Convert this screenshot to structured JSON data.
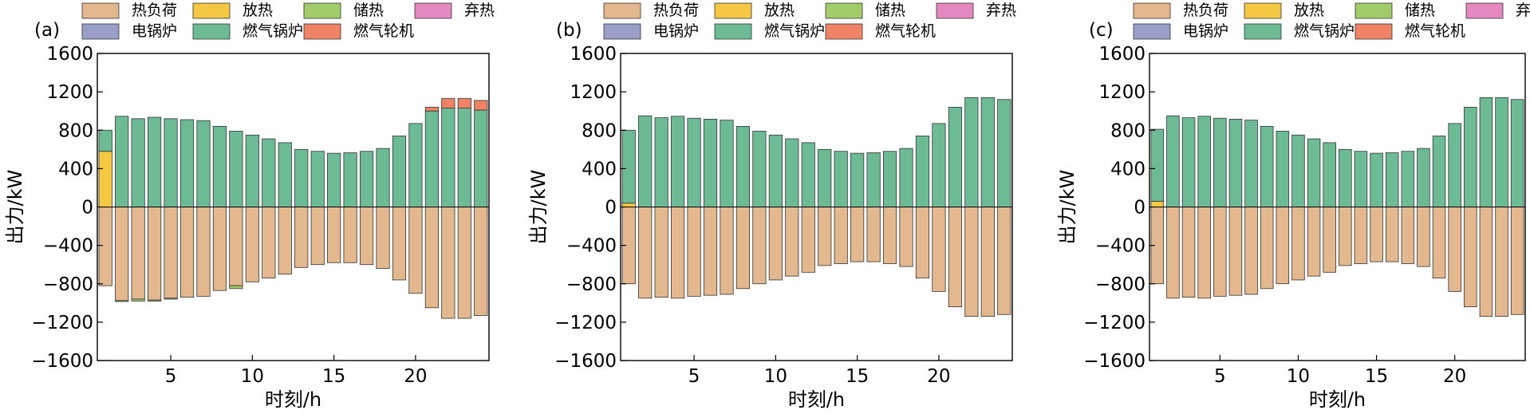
{
  "legend": {
    "row1": [
      {
        "name": "热负荷",
        "color": "#e3b88f"
      },
      {
        "name": "放热",
        "color": "#f5c843"
      },
      {
        "name": "储热",
        "color": "#a2cc6a"
      },
      {
        "name": "弃热",
        "color": "#e389c0"
      }
    ],
    "row2": [
      {
        "name": "电锅炉",
        "color": "#9a9fc9"
      },
      {
        "name": "燃气锅炉",
        "color": "#6dbb95"
      },
      {
        "name": "燃气轮机",
        "color": "#f08266"
      }
    ]
  },
  "chart_data": [
    {
      "type": "bar",
      "panel_label": "(a)",
      "xlabel": "时刻/h",
      "ylabel": "出力/kW",
      "ylim": [
        -1600,
        1600
      ],
      "yticks": [
        -1600,
        -1200,
        -800,
        -400,
        0,
        400,
        800,
        1200,
        1600
      ],
      "xticks": [
        5,
        10,
        15,
        20
      ],
      "x": [
        1,
        2,
        3,
        4,
        5,
        6,
        7,
        8,
        9,
        10,
        11,
        12,
        13,
        14,
        15,
        16,
        17,
        18,
        19,
        20,
        21,
        22,
        23,
        24
      ],
      "series": [
        {
          "name": "热负荷",
          "values": [
            -820,
            -975,
            -960,
            -970,
            -950,
            -940,
            -930,
            -870,
            -820,
            -780,
            -740,
            -700,
            -630,
            -600,
            -580,
            -580,
            -600,
            -640,
            -760,
            -900,
            -1050,
            -1160,
            -1160,
            -1130
          ]
        },
        {
          "name": "放热",
          "values": [
            580,
            0,
            0,
            0,
            0,
            0,
            0,
            0,
            0,
            0,
            0,
            0,
            0,
            0,
            0,
            0,
            0,
            0,
            0,
            0,
            0,
            0,
            0,
            0
          ]
        },
        {
          "name": "储热",
          "values": [
            0,
            -10,
            -20,
            -10,
            -10,
            0,
            0,
            0,
            -30,
            0,
            0,
            0,
            0,
            0,
            0,
            0,
            0,
            0,
            0,
            0,
            0,
            0,
            0,
            0
          ]
        },
        {
          "name": "燃气锅炉",
          "values": [
            220,
            945,
            920,
            935,
            920,
            910,
            900,
            840,
            790,
            750,
            710,
            670,
            600,
            580,
            560,
            565,
            580,
            610,
            740,
            870,
            1000,
            1030,
            1030,
            1010
          ]
        },
        {
          "name": "燃气轮机",
          "values": [
            0,
            0,
            0,
            0,
            0,
            0,
            0,
            0,
            0,
            0,
            0,
            0,
            0,
            0,
            0,
            0,
            0,
            0,
            0,
            0,
            40,
            100,
            100,
            100
          ]
        }
      ]
    },
    {
      "type": "bar",
      "panel_label": "(b)",
      "xlabel": "时刻/h",
      "ylabel": "出力/kW",
      "ylim": [
        -1600,
        1600
      ],
      "yticks": [
        -1600,
        -1200,
        -800,
        -400,
        0,
        400,
        800,
        1200,
        1600
      ],
      "xticks": [
        5,
        10,
        15,
        20
      ],
      "x": [
        1,
        2,
        3,
        4,
        5,
        6,
        7,
        8,
        9,
        10,
        11,
        12,
        13,
        14,
        15,
        16,
        17,
        18,
        19,
        20,
        21,
        22,
        23,
        24
      ],
      "series": [
        {
          "name": "热负荷",
          "values": [
            -800,
            -950,
            -940,
            -950,
            -930,
            -920,
            -910,
            -850,
            -800,
            -760,
            -720,
            -680,
            -610,
            -590,
            -570,
            -570,
            -590,
            -620,
            -740,
            -880,
            -1040,
            -1140,
            -1140,
            -1120
          ]
        },
        {
          "name": "放热",
          "values": [
            40,
            0,
            0,
            0,
            0,
            0,
            0,
            0,
            0,
            0,
            0,
            0,
            0,
            0,
            0,
            0,
            0,
            0,
            0,
            0,
            0,
            0,
            0,
            0
          ]
        },
        {
          "name": "燃气锅炉",
          "values": [
            760,
            950,
            930,
            945,
            925,
            915,
            905,
            840,
            790,
            750,
            710,
            670,
            600,
            580,
            560,
            565,
            580,
            610,
            740,
            870,
            1040,
            1140,
            1140,
            1120
          ]
        }
      ]
    },
    {
      "type": "bar",
      "panel_label": "(c)",
      "xlabel": "时刻/h",
      "ylabel": "出力/kW",
      "ylim": [
        -1600,
        1600
      ],
      "yticks": [
        -1600,
        -1200,
        -800,
        -400,
        0,
        400,
        800,
        1200,
        1600
      ],
      "xticks": [
        5,
        10,
        15,
        20
      ],
      "x": [
        1,
        2,
        3,
        4,
        5,
        6,
        7,
        8,
        9,
        10,
        11,
        12,
        13,
        14,
        15,
        16,
        17,
        18,
        19,
        20,
        21,
        22,
        23,
        24
      ],
      "series": [
        {
          "name": "热负荷",
          "values": [
            -800,
            -950,
            -940,
            -950,
            -930,
            -920,
            -910,
            -850,
            -800,
            -760,
            -720,
            -680,
            -610,
            -590,
            -570,
            -570,
            -590,
            -620,
            -740,
            -880,
            -1040,
            -1140,
            -1140,
            -1120
          ]
        },
        {
          "name": "放热",
          "values": [
            60,
            0,
            0,
            0,
            0,
            0,
            0,
            0,
            0,
            0,
            0,
            0,
            0,
            0,
            0,
            0,
            0,
            0,
            0,
            0,
            0,
            0,
            0,
            0
          ]
        },
        {
          "name": "燃气锅炉",
          "values": [
            750,
            950,
            930,
            945,
            925,
            915,
            905,
            840,
            790,
            750,
            710,
            670,
            600,
            580,
            560,
            565,
            580,
            610,
            740,
            870,
            1040,
            1140,
            1140,
            1120
          ]
        }
      ]
    }
  ]
}
